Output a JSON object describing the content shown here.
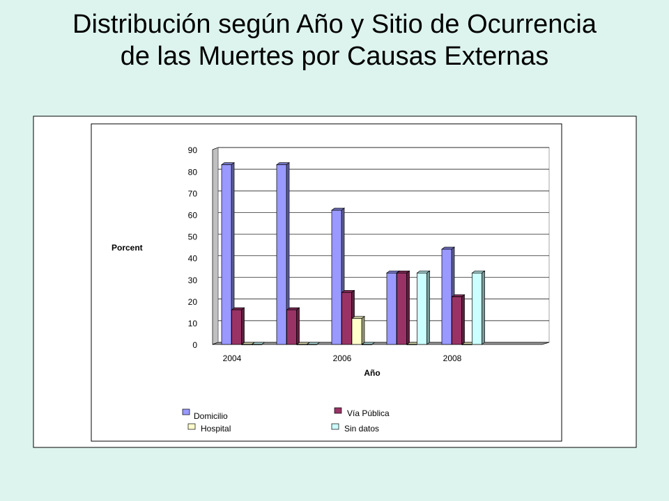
{
  "chart_data": {
    "type": "bar3d",
    "title": "Distribución según Año y Sitio de Ocurrencia de las Muertes por Causas Externas",
    "y_label": "Porcent",
    "x_label": "Año",
    "categories": [
      "2004",
      null,
      "2006",
      null,
      "2008"
    ],
    "series": [
      {
        "name": "Domicilio",
        "color": "#9999ff",
        "values": [
          83,
          83,
          62,
          33,
          44
        ]
      },
      {
        "name": "Vía Pública",
        "color": "#993366",
        "values": [
          16,
          16,
          24,
          33,
          22
        ]
      },
      {
        "name": "Hospital",
        "color": "#ffffcc",
        "values": [
          0,
          0,
          12,
          0,
          0
        ]
      },
      {
        "name": "Sin datos",
        "color": "#ccffff",
        "values": [
          0,
          0,
          0,
          33,
          33
        ]
      }
    ],
    "ylim": [
      0,
      90
    ],
    "yticks": [
      0,
      10,
      20,
      30,
      40,
      50,
      60,
      70,
      80,
      90
    ],
    "grid": true
  }
}
